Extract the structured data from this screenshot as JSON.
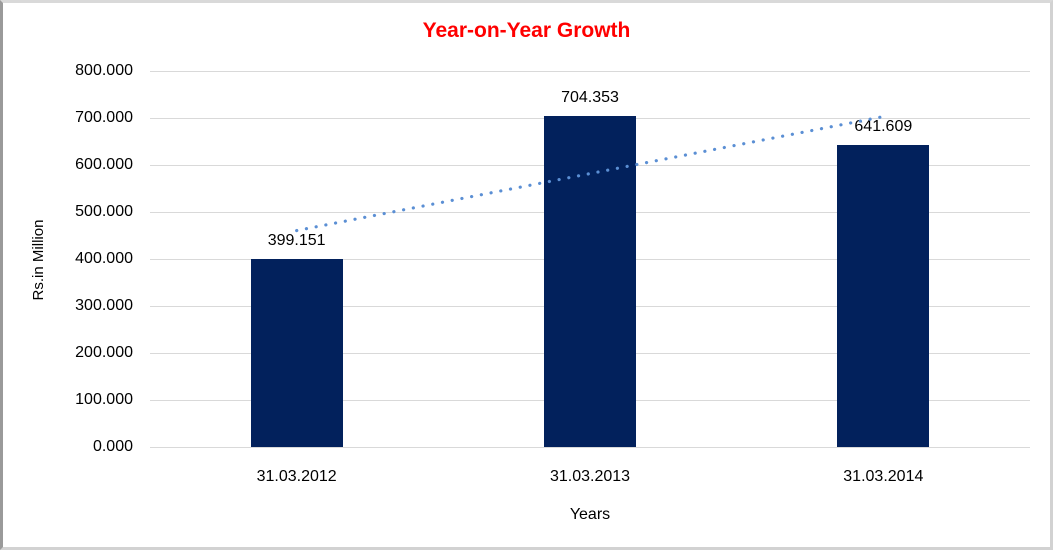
{
  "window": {
    "background": "#FFFFFF"
  },
  "chart_data": {
    "type": "bar",
    "title": "Year-on-Year Growth",
    "xlabel": "Years",
    "ylabel": "Rs.in Million",
    "categories": [
      "31.03.2012",
      "31.03.2013",
      "31.03.2014"
    ],
    "values": [
      399.151,
      704.353,
      641.609
    ],
    "value_labels": [
      "399.151",
      "704.353",
      "641.609"
    ],
    "ylim": [
      0,
      800
    ],
    "ytick_step": 100,
    "ytick_labels": [
      "0.000",
      "100.000",
      "200.000",
      "300.000",
      "400.000",
      "500.000",
      "600.000",
      "700.000",
      "800.000"
    ],
    "grid": "horizontal-only",
    "legend": "none",
    "trendline": {
      "type": "linear",
      "style": "dotted",
      "fit_values": [
        460.475,
        581.704,
        702.933
      ]
    },
    "colors": {
      "bar": "#02215C",
      "title": "#FF0000",
      "trendline": "#5B8FD4",
      "gridline": "#D9D9D9",
      "text": "#000000"
    }
  }
}
